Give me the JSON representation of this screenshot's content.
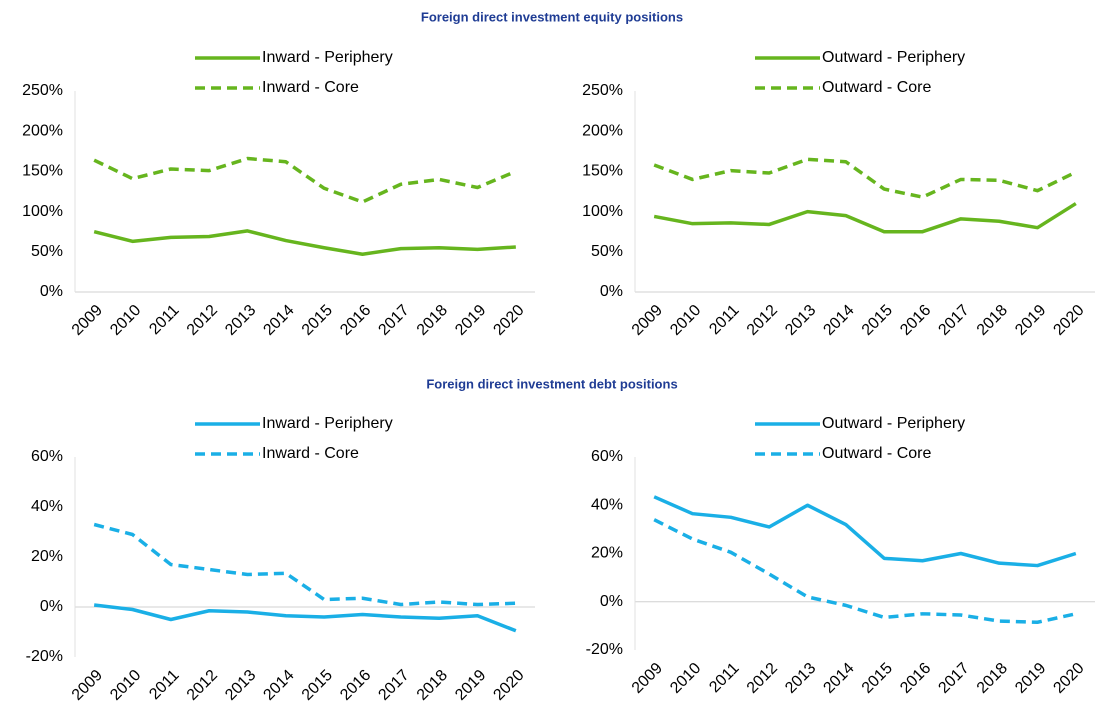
{
  "headings": [
    "Foreign direct investment equity positions",
    "Foreign direct investment debt positions"
  ],
  "chart_data": [
    {
      "type": "line",
      "legend": "top",
      "categories": [
        "2009",
        "2010",
        "2011",
        "2012",
        "2013",
        "2014",
        "2015",
        "2016",
        "2017",
        "2018",
        "2019",
        "2020"
      ],
      "series": [
        {
          "name": "Inward - Periphery",
          "color": "#66b51e",
          "dashed": false,
          "values": [
            75,
            63,
            68,
            69,
            76,
            64,
            55,
            47,
            54,
            55,
            53,
            56
          ]
        },
        {
          "name": "Inward - Core",
          "color": "#66b51e",
          "dashed": true,
          "values": [
            164,
            141,
            153,
            151,
            166,
            162,
            129,
            112,
            134,
            140,
            130,
            150
          ]
        }
      ],
      "ylim": [
        0,
        250
      ],
      "yticks": [
        {
          "value": 0,
          "label": "0%"
        },
        {
          "value": 50,
          "label": "50%"
        },
        {
          "value": 100,
          "label": "100%"
        },
        {
          "value": 150,
          "label": "150%"
        },
        {
          "value": 200,
          "label": "200%"
        },
        {
          "value": 250,
          "label": "250%"
        }
      ]
    },
    {
      "type": "line",
      "legend": "top",
      "categories": [
        "2009",
        "2010",
        "2011",
        "2012",
        "2013",
        "2014",
        "2015",
        "2016",
        "2017",
        "2018",
        "2019",
        "2020"
      ],
      "series": [
        {
          "name": "Outward - Periphery",
          "color": "#66b51e",
          "dashed": false,
          "values": [
            94,
            85,
            86,
            84,
            100,
            95,
            75,
            75,
            91,
            88,
            80,
            110
          ]
        },
        {
          "name": "Outward - Core",
          "color": "#66b51e",
          "dashed": true,
          "values": [
            158,
            140,
            151,
            148,
            165,
            162,
            128,
            118,
            140,
            139,
            126,
            149
          ]
        }
      ],
      "ylim": [
        0,
        250
      ],
      "yticks": [
        {
          "value": 0,
          "label": "0%"
        },
        {
          "value": 50,
          "label": "50%"
        },
        {
          "value": 100,
          "label": "100%"
        },
        {
          "value": 150,
          "label": "150%"
        },
        {
          "value": 200,
          "label": "200%"
        },
        {
          "value": 250,
          "label": "250%"
        }
      ]
    },
    {
      "type": "line",
      "legend": "top",
      "categories": [
        "2009",
        "2010",
        "2011",
        "2012",
        "2013",
        "2014",
        "2015",
        "2016",
        "2017",
        "2018",
        "2019",
        "2020"
      ],
      "series": [
        {
          "name": "Inward - Periphery",
          "color": "#1aafe6",
          "dashed": false,
          "values": [
            0.8,
            -1,
            -5,
            -1.5,
            -2,
            -3.5,
            -4,
            -3,
            -4,
            -4.5,
            -3.5,
            -9.5
          ]
        },
        {
          "name": "Inward - Core",
          "color": "#1aafe6",
          "dashed": true,
          "values": [
            33,
            29,
            17,
            15,
            13,
            13.5,
            3,
            3.5,
            1,
            2,
            1,
            1.5
          ]
        }
      ],
      "ylim": [
        -20,
        60
      ],
      "yticks": [
        {
          "value": -20,
          "label": "-20%"
        },
        {
          "value": 0,
          "label": "0%"
        },
        {
          "value": 20,
          "label": "20%"
        },
        {
          "value": 40,
          "label": "40%"
        },
        {
          "value": 60,
          "label": "60%"
        }
      ]
    },
    {
      "type": "line",
      "legend": "top",
      "categories": [
        "2009",
        "2010",
        "2011",
        "2012",
        "2013",
        "2014",
        "2015",
        "2016",
        "2017",
        "2018",
        "2019",
        "2020"
      ],
      "series": [
        {
          "name": "Outward - Periphery",
          "color": "#1aafe6",
          "dashed": false,
          "values": [
            43.5,
            36.5,
            35,
            31,
            40,
            32,
            18,
            17,
            20,
            16,
            15,
            20
          ]
        },
        {
          "name": "Outward - Core",
          "color": "#1aafe6",
          "dashed": true,
          "values": [
            34,
            26,
            20.5,
            11.5,
            2,
            -1.5,
            -6.5,
            -5,
            -5.5,
            -8,
            -8.5,
            -5
          ]
        }
      ],
      "ylim": [
        -20,
        60
      ],
      "yticks": [
        {
          "value": -20,
          "label": "-20%"
        },
        {
          "value": 0,
          "label": "0%"
        },
        {
          "value": 20,
          "label": "20%"
        },
        {
          "value": 40,
          "label": "40%"
        },
        {
          "value": 60,
          "label": "60%"
        }
      ]
    }
  ]
}
